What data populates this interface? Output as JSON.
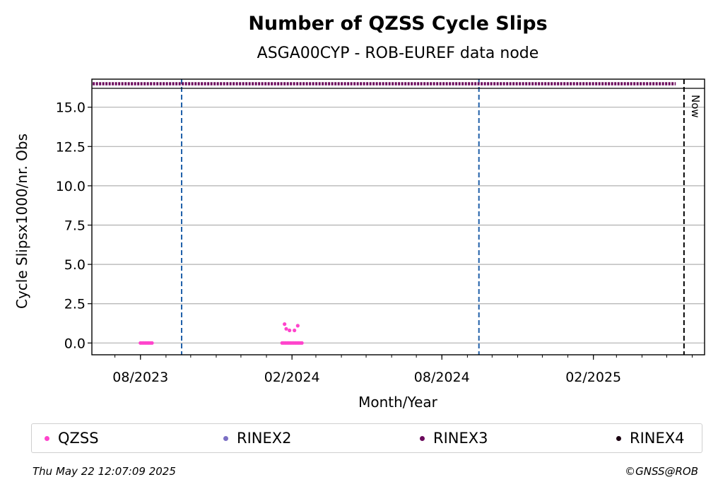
{
  "chart_data": {
    "type": "scatter",
    "title": "Number of QZSS Cycle Slips",
    "subtitle": "ASGA00CYP - ROB-EUREF data node",
    "xlabel": "Month/Year",
    "ylabel": "Cycle Slipsx1000/nr. Obs",
    "ylim": [
      -0.75,
      16.2
    ],
    "xlim": [
      "2023-06-03",
      "2025-06-16"
    ],
    "yticks": [
      "0.0",
      "2.5",
      "5.0",
      "7.5",
      "10.0",
      "12.5",
      "15.0"
    ],
    "xticks": [
      "08/2023",
      "02/2024",
      "08/2024",
      "02/2025"
    ],
    "grid": "horizontal",
    "vlines": [
      {
        "date": "2023-09-20",
        "style": "dashed",
        "color": "#1f5fa8"
      },
      {
        "date": "2024-09-15",
        "style": "dashed",
        "color": "#1f5fa8"
      },
      {
        "date": "2025-05-22",
        "style": "dashed",
        "color": "#000000",
        "label": "Now"
      }
    ],
    "availability_strip": {
      "series": "RINEX3",
      "from": "2023-06-04",
      "to": "2025-05-12"
    },
    "series": [
      {
        "name": "QZSS",
        "color": "#ff44cc",
        "points": [
          {
            "x": "2023-08-01",
            "y": 0.0
          },
          {
            "x": "2023-08-03",
            "y": 0.0
          },
          {
            "x": "2023-08-05",
            "y": 0.0
          },
          {
            "x": "2023-08-07",
            "y": 0.0
          },
          {
            "x": "2023-08-09",
            "y": 0.0
          },
          {
            "x": "2023-08-11",
            "y": 0.0
          },
          {
            "x": "2023-08-13",
            "y": 0.0
          },
          {
            "x": "2023-08-15",
            "y": 0.0
          },
          {
            "x": "2024-01-20",
            "y": 0.0
          },
          {
            "x": "2024-01-22",
            "y": 0.0
          },
          {
            "x": "2024-01-23",
            "y": 1.2
          },
          {
            "x": "2024-01-24",
            "y": 0.0
          },
          {
            "x": "2024-01-25",
            "y": 0.9
          },
          {
            "x": "2024-01-26",
            "y": 0.0
          },
          {
            "x": "2024-01-28",
            "y": 0.0
          },
          {
            "x": "2024-01-29",
            "y": 0.8
          },
          {
            "x": "2024-01-30",
            "y": 0.0
          },
          {
            "x": "2024-02-01",
            "y": 0.0
          },
          {
            "x": "2024-02-03",
            "y": 0.0
          },
          {
            "x": "2024-02-04",
            "y": 0.8
          },
          {
            "x": "2024-02-05",
            "y": 0.0
          },
          {
            "x": "2024-02-07",
            "y": 0.0
          },
          {
            "x": "2024-02-08",
            "y": 1.1
          },
          {
            "x": "2024-02-09",
            "y": 0.0
          },
          {
            "x": "2024-02-11",
            "y": 0.0
          },
          {
            "x": "2024-02-13",
            "y": 0.0
          }
        ]
      },
      {
        "name": "RINEX2",
        "color": "#7b6fc4",
        "points": []
      },
      {
        "name": "RINEX3",
        "color": "#6b0a5c",
        "points": []
      },
      {
        "name": "RINEX4",
        "color": "#1a0010",
        "points": []
      }
    ]
  },
  "legend": [
    {
      "label": "QZSS",
      "color": "#ff44cc"
    },
    {
      "label": "RINEX2",
      "color": "#7b6fc4"
    },
    {
      "label": "RINEX3",
      "color": "#6b0a5c"
    },
    {
      "label": "RINEX4",
      "color": "#1a0010"
    }
  ],
  "footer": {
    "timestamp": "Thu May 22 12:07:09 2025",
    "credit": "©GNSS@ROB"
  }
}
